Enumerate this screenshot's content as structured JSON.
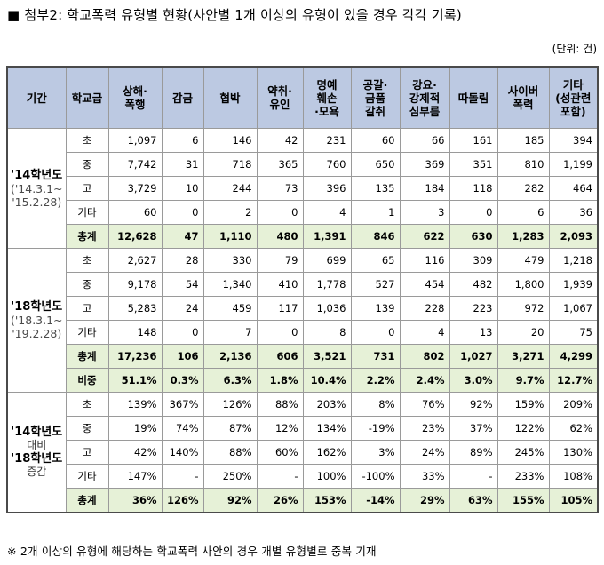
{
  "title": "■ 첨부2: 학교폭력 유형별 현황(사안별 1개 이상의 유형이 있을 경우 각각 기록)",
  "unit": "(단위: 건)",
  "headers": [
    "기간",
    "학교급",
    "상해·\n폭행",
    "감금",
    "협박",
    "약취·\n유인",
    "명예\n훼손\n·모욕",
    "공갈·\n금품\n갈취",
    "강요·\n강제적\n심부름",
    "따돌림",
    "사이버\n폭력",
    "기타\n(성관련\n포함)"
  ],
  "groups": [
    {
      "period": [
        "'14학년도",
        "('14.3.1~",
        "'15.2.28)"
      ],
      "rows": [
        {
          "grade": "초",
          "values": [
            "1,097",
            "6",
            "146",
            "42",
            "231",
            "60",
            "66",
            "161",
            "185",
            "394"
          ]
        },
        {
          "grade": "중",
          "values": [
            "7,742",
            "31",
            "718",
            "365",
            "760",
            "650",
            "369",
            "351",
            "810",
            "1,199"
          ]
        },
        {
          "grade": "고",
          "values": [
            "3,729",
            "10",
            "244",
            "73",
            "396",
            "135",
            "184",
            "118",
            "282",
            "464"
          ]
        },
        {
          "grade": "기타",
          "values": [
            "60",
            "0",
            "2",
            "0",
            "4",
            "1",
            "3",
            "0",
            "6",
            "36"
          ]
        },
        {
          "grade": "총계",
          "type": "total",
          "values": [
            "12,628",
            "47",
            "1,110",
            "480",
            "1,391",
            "846",
            "622",
            "630",
            "1,283",
            "2,093"
          ]
        }
      ]
    },
    {
      "period": [
        "'18학년도",
        "('18.3.1~",
        "'19.2.28)"
      ],
      "rows": [
        {
          "grade": "초",
          "values": [
            "2,627",
            "28",
            "330",
            "79",
            "699",
            "65",
            "116",
            "309",
            "479",
            "1,218"
          ]
        },
        {
          "grade": "중",
          "values": [
            "9,178",
            "54",
            "1,340",
            "410",
            "1,778",
            "527",
            "454",
            "482",
            "1,800",
            "1,939"
          ]
        },
        {
          "grade": "고",
          "values": [
            "5,283",
            "24",
            "459",
            "117",
            "1,036",
            "139",
            "228",
            "223",
            "972",
            "1,067"
          ]
        },
        {
          "grade": "기타",
          "values": [
            "148",
            "0",
            "7",
            "0",
            "8",
            "0",
            "4",
            "13",
            "20",
            "75"
          ]
        },
        {
          "grade": "총계",
          "type": "total",
          "values": [
            "17,236",
            "106",
            "2,136",
            "606",
            "3,521",
            "731",
            "802",
            "1,027",
            "3,271",
            "4,299"
          ]
        },
        {
          "grade": "비중",
          "type": "share",
          "values": [
            "51.1%",
            "0.3%",
            "6.3%",
            "1.8%",
            "10.4%",
            "2.2%",
            "2.4%",
            "3.0%",
            "9.7%",
            "12.7%"
          ]
        }
      ]
    },
    {
      "period": [
        "'14학년도",
        "대비",
        "'18학년도",
        "증감"
      ],
      "rows": [
        {
          "grade": "초",
          "values": [
            "139%",
            "367%",
            "126%",
            "88%",
            "203%",
            "8%",
            "76%",
            "92%",
            "159%",
            "209%"
          ]
        },
        {
          "grade": "중",
          "values": [
            "19%",
            "74%",
            "87%",
            "12%",
            "134%",
            "-19%",
            "23%",
            "37%",
            "122%",
            "62%"
          ]
        },
        {
          "grade": "고",
          "values": [
            "42%",
            "140%",
            "88%",
            "60%",
            "162%",
            "3%",
            "24%",
            "89%",
            "245%",
            "130%"
          ]
        },
        {
          "grade": "기타",
          "values": [
            "147%",
            "-",
            "250%",
            "-",
            "100%",
            "-100%",
            "33%",
            "-",
            "233%",
            "108%"
          ]
        },
        {
          "grade": "총계",
          "type": "total",
          "values": [
            "36%",
            "126%",
            "92%",
            "26%",
            "153%",
            "-14%",
            "29%",
            "63%",
            "155%",
            "105%"
          ]
        }
      ]
    }
  ],
  "note": "※ 2개 이상의 유형에 해당하는 학교폭력 사안의 경우 개별 유형별로 중복 기재"
}
